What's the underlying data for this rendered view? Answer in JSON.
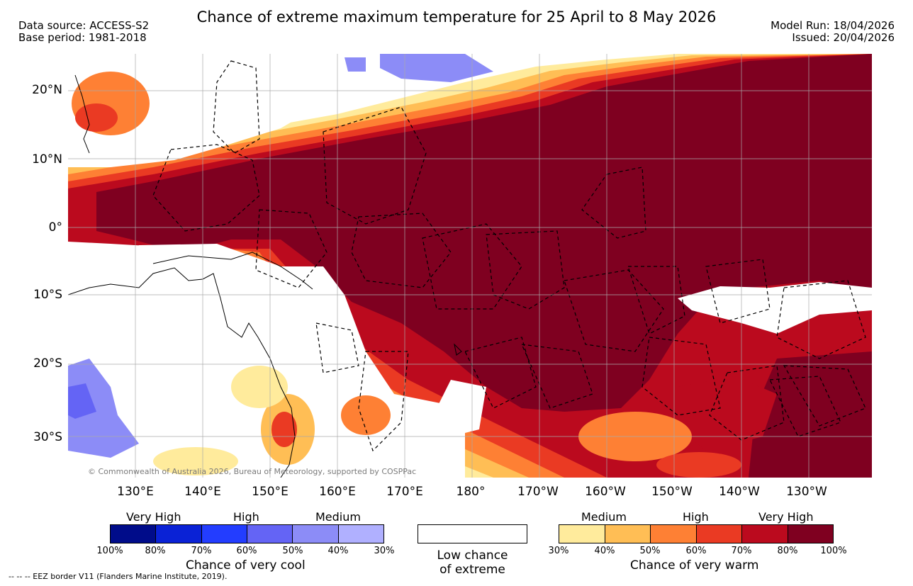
{
  "header": {
    "data_source": "Data source: ACCESS-S2",
    "base_period": "Base period: 1981-2018",
    "title": "Chance of extreme maximum temperature for 25 April to 8 May 2026",
    "model_run": "Model Run: 18/04/2026",
    "issued": "Issued: 20/04/2026"
  },
  "map": {
    "copyright": "© Commonwealth of Australia 2026, Bureau of Meteorology, supported by COSPPac",
    "lon_ticks": [
      "130°E",
      "140°E",
      "150°E",
      "160°E",
      "170°E",
      "180°",
      "170°W",
      "160°W",
      "150°W",
      "140°W",
      "130°W"
    ],
    "lat_ticks": [
      "20°N",
      "10°N",
      "0°",
      "10°S",
      "20°S",
      "30°S"
    ]
  },
  "legend": {
    "cool": {
      "title": "Chance of very cool",
      "categories": [
        "Very High",
        "High",
        "Medium"
      ],
      "ticks": [
        "100%",
        "80%",
        "70%",
        "60%",
        "50%",
        "40%",
        "30%"
      ],
      "colors": [
        "#000c8a",
        "#0a22d6",
        "#233dff",
        "#6464f5",
        "#8c8cf7",
        "#b0b0ff"
      ]
    },
    "neutral": {
      "title_line1": "Low chance",
      "title_line2": "of extreme",
      "color": "#ffffff"
    },
    "warm": {
      "title": "Chance of very warm",
      "categories": [
        "Medium",
        "High",
        "Very High"
      ],
      "ticks": [
        "30%",
        "40%",
        "50%",
        "60%",
        "70%",
        "80%",
        "100%"
      ],
      "colors": [
        "#ffeb9c",
        "#ffbe55",
        "#fe8034",
        "#ea3a23",
        "#bb0a1e",
        "#7f0020"
      ]
    }
  },
  "footer": "--  --  -- EEZ border V11 (Flanders Marine Institute, 2019)."
}
